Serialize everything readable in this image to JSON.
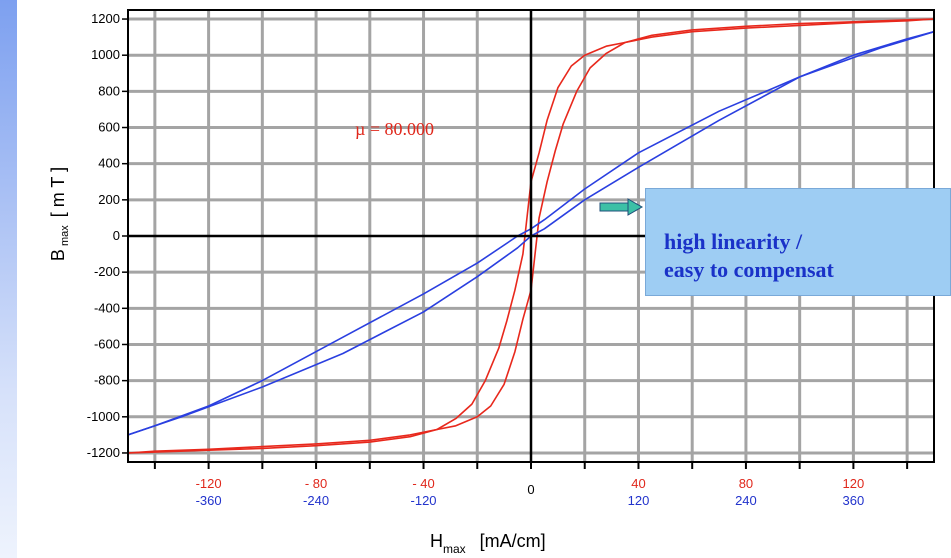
{
  "chart_data": {
    "type": "line",
    "ylabel_main": "B",
    "ylabel_sub": "max",
    "ylabel_unit": "[ m T ]",
    "xlabel_main": "H",
    "xlabel_sub": "max",
    "xlabel_unit": "[mA/cm]",
    "xlim": [
      -150,
      150
    ],
    "ylim": [
      -1250,
      1250
    ],
    "y_ticks": [
      -1200,
      -1000,
      -800,
      -600,
      -400,
      -200,
      0,
      200,
      400,
      600,
      800,
      1000,
      1200
    ],
    "x_ticks_red": [
      -120,
      -80,
      -40,
      0,
      40,
      80,
      120
    ],
    "x_tick_labels_red": [
      "-120",
      "- 80",
      "- 40",
      "0",
      "40",
      "80",
      "120"
    ],
    "x_tick_labels_blue": [
      "-360",
      "-240",
      "-120",
      "",
      "120",
      "240",
      "360"
    ],
    "grid": true,
    "annotation": "µ = 80.000",
    "series": [
      {
        "color": "#e8281c",
        "x": [
          -150,
          -140,
          -120,
          -100,
          -80,
          -60,
          -45,
          -35,
          -28,
          -22,
          -17,
          -12,
          -9,
          -6,
          -3,
          0,
          3,
          6,
          10,
          15,
          20,
          28,
          35,
          45,
          60,
          80,
          100,
          120,
          140,
          150
        ],
        "y": [
          -1200,
          -1195,
          -1185,
          -1175,
          -1160,
          -1140,
          -1110,
          -1070,
          -1010,
          -930,
          -800,
          -620,
          -470,
          -300,
          -100,
          300,
          460,
          640,
          820,
          940,
          1000,
          1050,
          1070,
          1100,
          1130,
          1150,
          1165,
          1180,
          1190,
          1200
        ]
      },
      {
        "color": "#e8281c",
        "x": [
          150,
          140,
          120,
          100,
          80,
          60,
          45,
          35,
          28,
          22,
          17,
          12,
          9,
          6,
          3,
          0,
          -3,
          -6,
          -10,
          -15,
          -20,
          -28,
          -35,
          -45,
          -60,
          -80,
          -100,
          -120,
          -140,
          -150
        ],
        "y": [
          1200,
          1195,
          1185,
          1175,
          1160,
          1140,
          1110,
          1070,
          1010,
          930,
          800,
          620,
          470,
          300,
          100,
          -300,
          -460,
          -640,
          -820,
          -940,
          -1000,
          -1050,
          -1070,
          -1100,
          -1130,
          -1150,
          -1165,
          -1180,
          -1190,
          -1200
        ]
      },
      {
        "color": "#2a3fe0",
        "x": [
          -150,
          -130,
          -100,
          -70,
          -40,
          -20,
          -5,
          0,
          5,
          20,
          40,
          70,
          100,
          120,
          140,
          150
        ],
        "y": [
          -1100,
          -1000,
          -835,
          -650,
          -420,
          -225,
          -65,
          0,
          40,
          200,
          380,
          640,
          880,
          1000,
          1090,
          1130
        ]
      },
      {
        "color": "#2a3fe0",
        "x": [
          150,
          130,
          100,
          70,
          40,
          20,
          5,
          0,
          -5,
          -20,
          -40,
          -70,
          -100,
          -120,
          -140,
          -150
        ],
        "y": [
          1130,
          1040,
          880,
          690,
          460,
          260,
          90,
          40,
          0,
          -150,
          -320,
          -560,
          -800,
          -940,
          -1050,
          -1100
        ]
      }
    ]
  },
  "callout": {
    "line1": "high linearity /",
    "line2": "easy to compensat"
  }
}
